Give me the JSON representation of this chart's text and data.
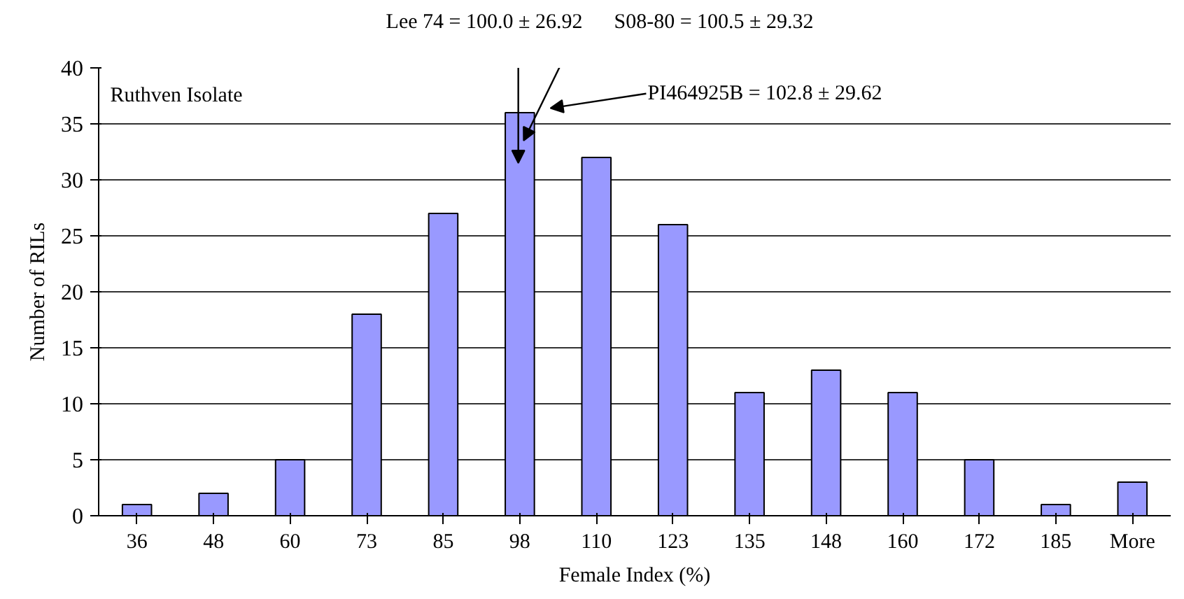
{
  "chart_data": {
    "type": "bar",
    "xlabel": "Female Index (%)",
    "ylabel": "Number of RILs",
    "categories": [
      "36",
      "48",
      "60",
      "73",
      "85",
      "98",
      "110",
      "123",
      "135",
      "148",
      "160",
      "172",
      "185",
      "More"
    ],
    "values": [
      1,
      2,
      5,
      18,
      27,
      36,
      32,
      26,
      11,
      13,
      11,
      5,
      1,
      3
    ],
    "color": "#9999ff",
    "ylim": [
      0,
      40
    ],
    "yticks": [
      0,
      5,
      10,
      15,
      20,
      25,
      30,
      35,
      40
    ],
    "grid": "y",
    "annotations": [
      "Ruthven Isolate",
      "Lee 74 = 100.0 ± 26.92",
      "S08-80 = 100.5 ± 29.32",
      "PI464925B = 102.8 ± 29.62"
    ]
  }
}
